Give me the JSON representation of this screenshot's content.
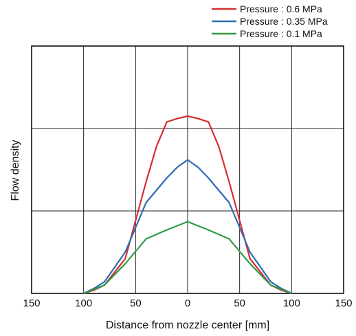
{
  "chart_data": {
    "type": "line",
    "xlabel": "Distance from nozzle center [mm]",
    "ylabel": "Flow density",
    "xlim": [
      -150,
      150
    ],
    "ylim": [
      0,
      3
    ],
    "x_ticks": [
      -150,
      -100,
      -50,
      0,
      50,
      100,
      150
    ],
    "x_tick_labels": [
      "150",
      "100",
      "50",
      "0",
      "50",
      "100",
      "150"
    ],
    "grid": true,
    "legend_position": "top-right",
    "series": [
      {
        "name": "Pressure : 0.6 MPa",
        "color": "#d62d2d",
        "x": [
          -100,
          -90,
          -80,
          -60,
          -40,
          -30,
          -20,
          -10,
          0,
          10,
          20,
          30,
          40,
          60,
          80,
          90,
          100
        ],
        "y": [
          0.0,
          0.04,
          0.1,
          0.42,
          1.35,
          1.78,
          2.08,
          2.12,
          2.15,
          2.12,
          2.08,
          1.78,
          1.35,
          0.42,
          0.1,
          0.04,
          0.0
        ]
      },
      {
        "name": "Pressure : 0.35 MPa",
        "color": "#2d6bb3",
        "x": [
          -100,
          -90,
          -80,
          -60,
          -40,
          -20,
          -10,
          0,
          10,
          20,
          40,
          60,
          80,
          90,
          100
        ],
        "y": [
          0.0,
          0.06,
          0.14,
          0.5,
          1.1,
          1.4,
          1.53,
          1.62,
          1.53,
          1.4,
          1.1,
          0.5,
          0.14,
          0.06,
          0.0
        ]
      },
      {
        "name": "Pressure : 0.1 MPa",
        "color": "#2f9a48",
        "x": [
          -100,
          -80,
          -60,
          -40,
          -20,
          0,
          20,
          40,
          60,
          80,
          100
        ],
        "y": [
          0.0,
          0.1,
          0.36,
          0.66,
          0.77,
          0.87,
          0.77,
          0.66,
          0.36,
          0.1,
          0.0
        ]
      }
    ]
  }
}
